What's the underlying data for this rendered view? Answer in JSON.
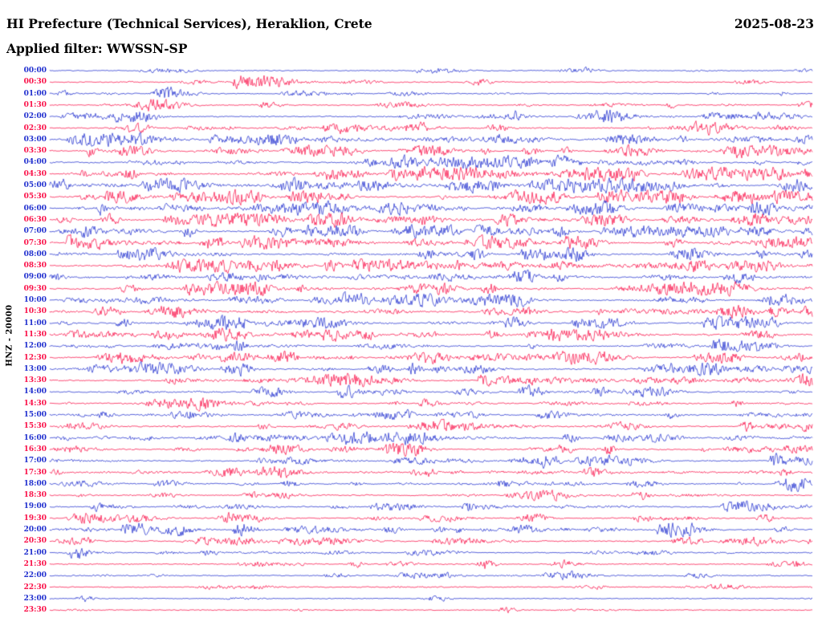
{
  "header": {
    "title": "HI Prefecture (Technical Services), Heraklion, Crete",
    "date": "2025-08-23",
    "filter_label": "Applied filter: WWSSN-SP"
  },
  "plot": {
    "channel_label": "HNZ - 20000",
    "trace_colors": {
      "blue": "#2130cf",
      "red": "#fa1048"
    },
    "background": "#ffffff"
  },
  "chart_data": {
    "type": "line",
    "subtype": "helicorder-seismogram",
    "title": "HI Prefecture (Technical Services), Heraklion, Crete",
    "date": "2025-08-23",
    "filter": "WWSSN-SP",
    "channel": "HNZ",
    "amplitude_scale": 20000,
    "minutes_per_row": 30,
    "rows": 48,
    "row_times": [
      "00:00",
      "00:30",
      "01:00",
      "01:30",
      "02:00",
      "02:30",
      "03:00",
      "03:30",
      "04:00",
      "04:30",
      "05:00",
      "05:30",
      "06:00",
      "06:30",
      "07:00",
      "07:30",
      "08:00",
      "08:30",
      "09:00",
      "09:30",
      "10:00",
      "10:30",
      "11:00",
      "11:30",
      "12:00",
      "12:30",
      "13:00",
      "13:30",
      "14:00",
      "14:30",
      "15:00",
      "15:30",
      "16:00",
      "16:30",
      "17:00",
      "17:30",
      "18:00",
      "18:30",
      "19:00",
      "19:30",
      "20:00",
      "20:30",
      "21:00",
      "21:30",
      "22:00",
      "22:30",
      "23:00",
      "23:30"
    ],
    "row_colors": [
      "blue",
      "red",
      "blue",
      "red",
      "blue",
      "red",
      "blue",
      "red",
      "blue",
      "red",
      "blue",
      "red",
      "blue",
      "red",
      "blue",
      "red",
      "blue",
      "red",
      "blue",
      "red",
      "blue",
      "red",
      "blue",
      "red",
      "blue",
      "red",
      "blue",
      "red",
      "blue",
      "red",
      "blue",
      "red",
      "blue",
      "red",
      "blue",
      "red",
      "blue",
      "red",
      "blue",
      "red",
      "blue",
      "red",
      "blue",
      "red",
      "blue",
      "red",
      "blue",
      "red"
    ],
    "activity": [
      0.2,
      0.3,
      0.3,
      0.45,
      0.6,
      0.65,
      0.8,
      0.85,
      0.9,
      0.9,
      1.0,
      1.0,
      1.0,
      1.0,
      1.0,
      0.95,
      0.95,
      0.9,
      0.9,
      0.9,
      0.95,
      0.95,
      1.0,
      0.95,
      0.9,
      0.9,
      0.9,
      0.8,
      0.75,
      0.75,
      0.8,
      0.8,
      0.8,
      0.7,
      0.7,
      0.65,
      0.65,
      0.6,
      0.6,
      0.55,
      0.55,
      0.55,
      0.5,
      0.45,
      0.45,
      0.35,
      0.2,
      0.18
    ]
  }
}
